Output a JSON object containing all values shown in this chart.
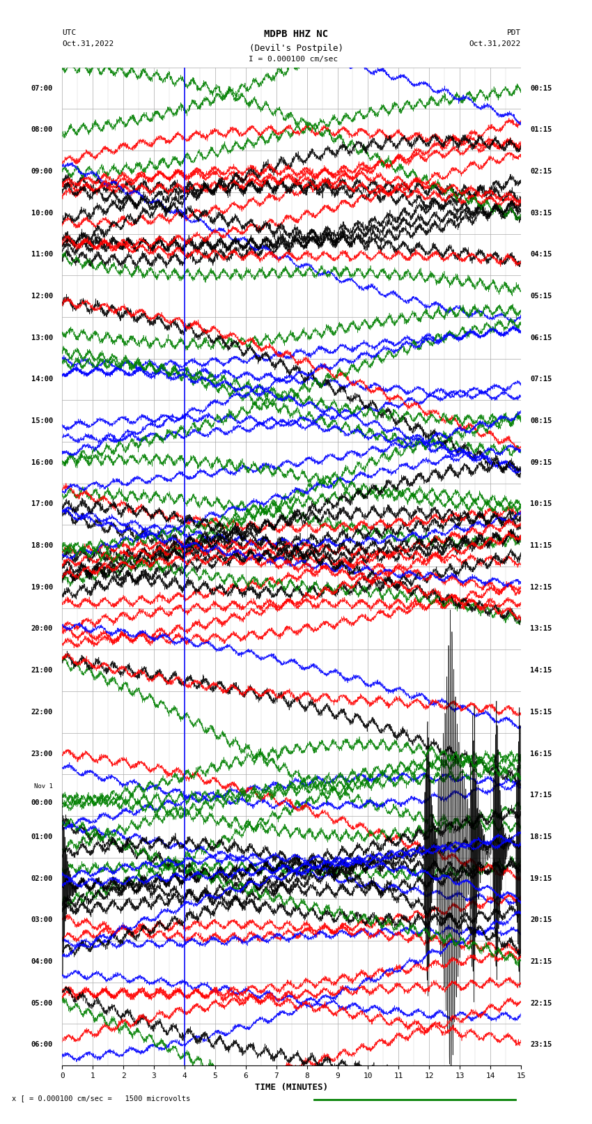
{
  "title_line1": "MDPB HHZ NC",
  "title_line2": "(Devil's Postpile)",
  "scale_label": "I = 0.000100 cm/sec",
  "xlabel": "TIME (MINUTES)",
  "footnote": "x [ = 0.000100 cm/sec =   1500 microvolts",
  "xlim": [
    0,
    15
  ],
  "num_rows": 24,
  "row_labels_utc": [
    "07:00",
    "08:00",
    "09:00",
    "10:00",
    "11:00",
    "12:00",
    "13:00",
    "14:00",
    "15:00",
    "16:00",
    "17:00",
    "18:00",
    "19:00",
    "20:00",
    "21:00",
    "22:00",
    "23:00",
    "00:00",
    "01:00",
    "02:00",
    "03:00",
    "04:00",
    "05:00",
    "06:00"
  ],
  "row_labels_pdt": [
    "00:15",
    "01:15",
    "02:15",
    "03:15",
    "04:15",
    "05:15",
    "06:15",
    "07:15",
    "08:15",
    "09:15",
    "10:15",
    "11:15",
    "12:15",
    "13:15",
    "14:15",
    "15:15",
    "16:15",
    "17:15",
    "18:15",
    "19:15",
    "20:15",
    "21:15",
    "22:15",
    "23:15"
  ],
  "row_label_utc_special": "Nov 1",
  "row_label_utc_special_index": 17,
  "grid_color": "#aaaaaa",
  "event_minute": 12.7,
  "blue_vline_minute": 4.0,
  "colors": [
    "black",
    "red",
    "green",
    "blue"
  ]
}
